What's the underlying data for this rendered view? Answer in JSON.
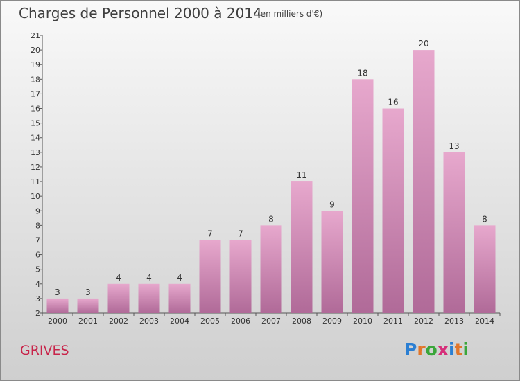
{
  "header": {
    "title": "Charges de Personnel 2000 à 2014",
    "subtitle": "(en milliers d'€)"
  },
  "commune": "GRIVES",
  "logo": {
    "letters": [
      "P",
      "r",
      "o",
      "x",
      "i",
      "t",
      "i"
    ],
    "colors": [
      "#2b7fd3",
      "#e2762a",
      "#3aa63a",
      "#d62f7a",
      "#2b7fd3",
      "#e2762a",
      "#3aa63a"
    ]
  },
  "chart_data": {
    "type": "bar",
    "categories": [
      "2000",
      "2001",
      "2002",
      "2003",
      "2004",
      "2005",
      "2006",
      "2007",
      "2008",
      "2009",
      "2010",
      "2011",
      "2012",
      "2013",
      "2014"
    ],
    "values": [
      3,
      3,
      4,
      4,
      4,
      7,
      7,
      8,
      11,
      9,
      18,
      16,
      20,
      13,
      8
    ],
    "ylim": [
      2,
      21
    ],
    "yticks": [
      2,
      3,
      4,
      5,
      6,
      7,
      8,
      9,
      10,
      11,
      12,
      13,
      14,
      15,
      16,
      17,
      18,
      19,
      20,
      21
    ],
    "grid": false,
    "bar_color_top": "#e7a8cd",
    "bar_color_bottom": "#b06a98"
  }
}
